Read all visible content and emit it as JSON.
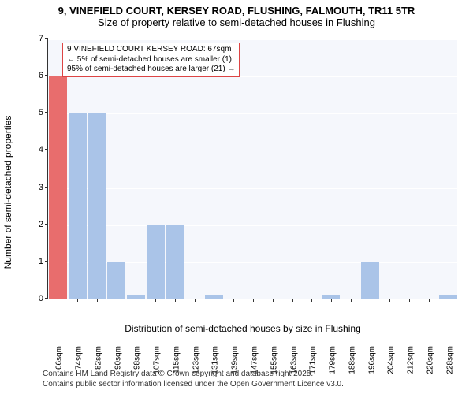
{
  "title": {
    "line1": "9, VINEFIELD COURT, KERSEY ROAD, FLUSHING, FALMOUTH, TR11 5TR",
    "line2": "Size of property relative to semi-detached houses in Flushing"
  },
  "chart": {
    "type": "bar",
    "background_color": "#f5f7fc",
    "grid_color": "#ffffff",
    "axis_color": "#333333",
    "bar_color": "#aac4e8",
    "highlight_color": "#e86d6d",
    "ylabel": "Number of semi-detached properties",
    "xlabel": "Distribution of semi-detached houses by size in Flushing",
    "label_fontsize": 12,
    "ylim": [
      0,
      7
    ],
    "ytick_step": 1,
    "yticks": [
      0,
      1,
      2,
      3,
      4,
      5,
      6,
      7
    ],
    "categories": [
      "66sqm",
      "74sqm",
      "82sqm",
      "90sqm",
      "98sqm",
      "107sqm",
      "115sqm",
      "123sqm",
      "131sqm",
      "139sqm",
      "147sqm",
      "155sqm",
      "163sqm",
      "171sqm",
      "179sqm",
      "188sqm",
      "196sqm",
      "204sqm",
      "212sqm",
      "220sqm",
      "228sqm"
    ],
    "values": [
      6.0,
      5.0,
      5.0,
      1.0,
      0.1,
      2.0,
      2.0,
      0.0,
      0.1,
      0.0,
      0.0,
      0.0,
      0.0,
      0.0,
      0.1,
      0.0,
      1.0,
      0.0,
      0.0,
      0.0,
      0.1
    ],
    "highlight_index": 0,
    "bar_width_ratio": 0.92,
    "tick_fontsize": 11,
    "xtick_fontsize": 10,
    "xtick_rotation": -90
  },
  "annotation": {
    "line1": "9 VINEFIELD COURT KERSEY ROAD: 67sqm",
    "line2": "← 5% of semi-detached houses are smaller (1)",
    "line3": "95% of semi-detached houses are larger (21) →",
    "border_color": "#d44444",
    "fontsize": 10
  },
  "footer": {
    "line1": "Contains HM Land Registry data © Crown copyright and database right 2025.",
    "line2": "Contains public sector information licensed under the Open Government Licence v3.0.",
    "fontsize": 10
  }
}
